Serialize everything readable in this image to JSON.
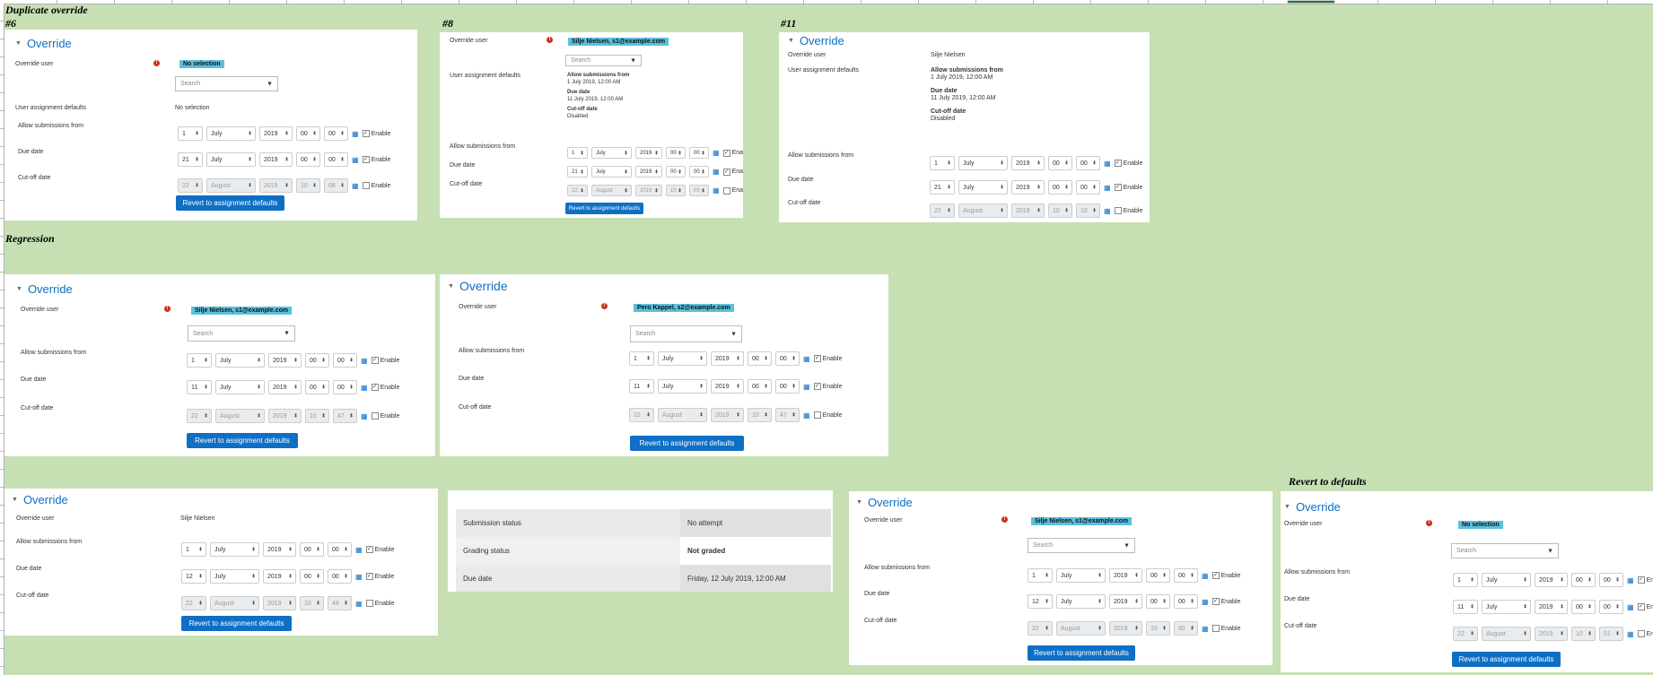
{
  "sheet_labels": {
    "duplicate": "Duplicate override",
    "regression": "Regression",
    "revert": "Revert to defaults"
  },
  "cases": {
    "c6": "#6",
    "c8": "#8",
    "c11": "#11"
  },
  "labels": {
    "override": "Override",
    "override_user": "Override user",
    "user_defaults": "User assignment defaults",
    "allow_from": "Allow submissions from",
    "due_date": "Due date",
    "cutoff_date": "Cut-off date",
    "enable": "Enable",
    "revert_button": "Revert to assignment defaults",
    "search_placeholder": "Search",
    "no_selection": "No selection",
    "defaults_allow_heading": "Allow submissions from",
    "defaults_due_heading": "Due date",
    "defaults_cutoff_heading": "Cut-off date",
    "defaults_allow_value": "1 July 2019, 12:00 AM",
    "defaults_due_value": "11 July 2019, 12:00 AM",
    "defaults_cutoff_value": "Disabled"
  },
  "users": {
    "silje_badge": "Silje Nielsen, s1@example.com",
    "silje_name": "Silje Nielsen",
    "pero_badge": "Pero Kappel, s2@example.com",
    "no_selection": "No selection"
  },
  "common": {
    "july": "July",
    "august": "August",
    "year": "2019",
    "zero": "00",
    "ten": "10",
    "one": "1",
    "twenty_two": "22"
  },
  "dates": {
    "p6": {
      "due_day": "21",
      "cut_min": "08"
    },
    "p8": {
      "due_day": "21",
      "cut_min": "09"
    },
    "p11": {
      "due_day": "21",
      "cut_min": "10"
    },
    "r1": {
      "due_day": "11",
      "cut_min": "47"
    },
    "r2": {
      "due_day": "11",
      "cut_min": "47"
    },
    "b1": {
      "due_day": "12",
      "cut_min": "48"
    },
    "b3": {
      "due_day": "12",
      "cut_min": "50"
    },
    "b4": {
      "due_day": "11",
      "cut_min": "51"
    }
  },
  "submission_table": {
    "rows": [
      {
        "label": "Submission status",
        "value": "No attempt"
      },
      {
        "label": "Grading status",
        "value": "Not graded"
      },
      {
        "label": "Due date",
        "value": "Friday, 12 July 2019, 12:00 AM"
      }
    ]
  },
  "colors": {
    "background": "#c6e0b4",
    "accent": "#0f6fc5",
    "badge": "#5bc0de",
    "error": "#ca3120"
  },
  "icons": {
    "calendar": "calendar-icon",
    "error": "exclamation-icon",
    "collapse": "collapse-triangle-icon",
    "spinner": "updown-icon"
  }
}
